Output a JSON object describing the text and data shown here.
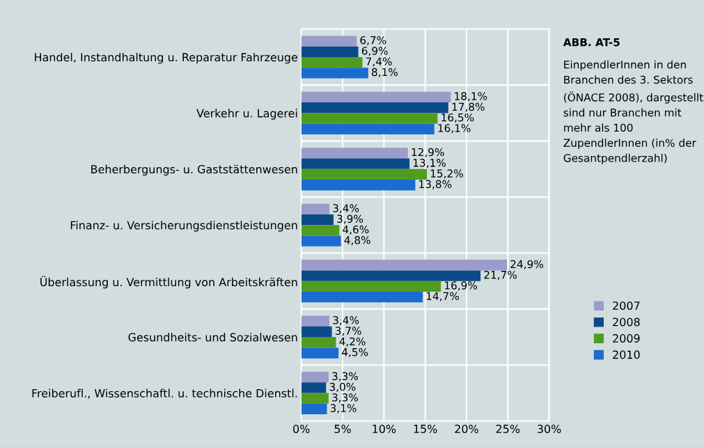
{
  "chart_data": {
    "type": "bar",
    "orientation": "horizontal",
    "title": "ABB. AT-5",
    "subtitle": "EinpendlerInnen in den Branchen des 3. Sektors (ÖNACE 2008), dargestellt sind nur Branchen mit mehr als 100 ZupendlerInnen (in% der Gesantpendlerzahl)",
    "categories": [
      "Handel, Instandhaltung u. Reparatur Fahrzeuge",
      "Verkehr u. Lagerei",
      "Beherbergungs- u. Gaststättenwesen",
      "Finanz- u. Versicherungsdienstleistungen",
      "Überlassung u. Vermittlung von Arbeitskräften",
      "Gesundheits- und Sozialwesen",
      "Freiberufl., Wissenschaftl. u. technische Dienstl."
    ],
    "series": [
      {
        "name": "2007",
        "color": "#9b9bcc",
        "values": [
          6.7,
          18.1,
          12.9,
          3.4,
          24.9,
          3.4,
          3.3
        ],
        "value_labels": [
          "6,7%",
          "18,1%",
          "12,9%",
          "3,4%",
          "24,9%",
          "3,4%",
          "3,3%"
        ]
      },
      {
        "name": "2008",
        "color": "#0b4a88",
        "values": [
          6.9,
          17.8,
          13.1,
          3.9,
          21.7,
          3.7,
          3.0
        ],
        "value_labels": [
          "6,9%",
          "17,8%",
          "13,1%",
          "3,9%",
          "21,7%",
          "3,7%",
          "3,0%"
        ]
      },
      {
        "name": "2009",
        "color": "#4f9c1f",
        "values": [
          7.4,
          16.5,
          15.2,
          4.6,
          16.9,
          4.2,
          3.3
        ],
        "value_labels": [
          "7,4%",
          "16,5%",
          "15,2%",
          "4,6%",
          "16,9%",
          "4,2%",
          "3,3%"
        ]
      },
      {
        "name": "2010",
        "color": "#1a6cd0",
        "values": [
          8.1,
          16.1,
          13.8,
          4.8,
          14.7,
          4.5,
          3.1
        ],
        "value_labels": [
          "8,1%",
          "16,1%",
          "13,8%",
          "4,8%",
          "14,7%",
          "4,5%",
          "3,1%"
        ]
      }
    ],
    "xlim": [
      0,
      30
    ],
    "xticks": [
      {
        "value": 0,
        "label": "0%"
      },
      {
        "value": 5,
        "label": "5%"
      },
      {
        "value": 10,
        "label": "10%"
      },
      {
        "value": 15,
        "label": "15%"
      },
      {
        "value": 20,
        "label": "20%"
      },
      {
        "value": 25,
        "label": "25%"
      },
      {
        "value": 30,
        "label": "30%"
      }
    ],
    "grid": "x",
    "legend": "bottom right"
  }
}
